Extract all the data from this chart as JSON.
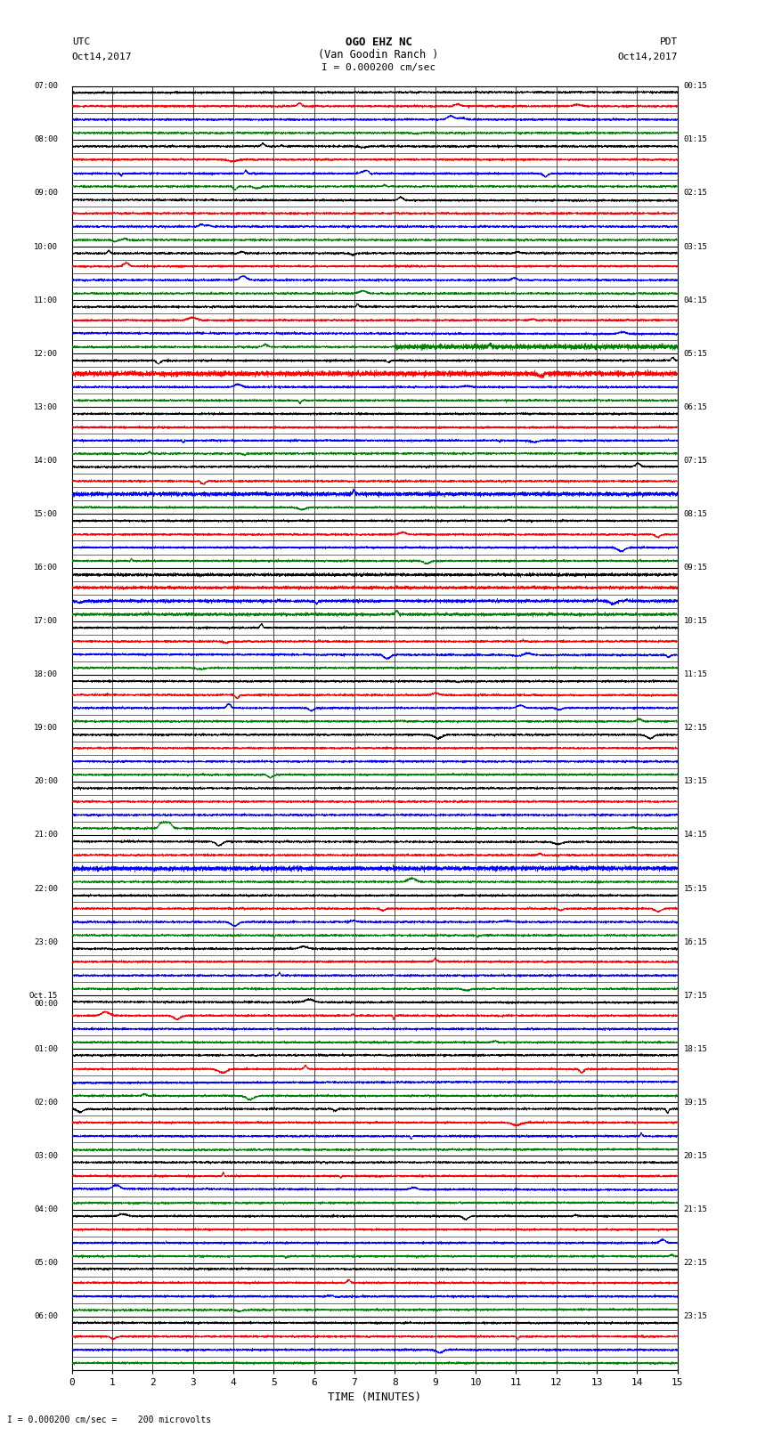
{
  "title_line1": "OGO EHZ NC",
  "title_line2": "(Van Goodin Ranch )",
  "scale_label": "I = 0.000200 cm/sec",
  "bottom_label": "I = 0.000200 cm/sec =    200 microvolts",
  "xlabel": "TIME (MINUTES)",
  "left_times": [
    "07:00",
    "08:00",
    "09:00",
    "10:00",
    "11:00",
    "12:00",
    "13:00",
    "14:00",
    "15:00",
    "16:00",
    "17:00",
    "18:00",
    "19:00",
    "20:00",
    "21:00",
    "22:00",
    "23:00",
    "Oct.15\n00:00",
    "01:00",
    "02:00",
    "03:00",
    "04:00",
    "05:00",
    "06:00"
  ],
  "right_times": [
    "00:15",
    "01:15",
    "02:15",
    "03:15",
    "04:15",
    "05:15",
    "06:15",
    "07:15",
    "08:15",
    "09:15",
    "10:15",
    "11:15",
    "12:15",
    "13:15",
    "14:15",
    "15:15",
    "16:15",
    "17:15",
    "18:15",
    "19:15",
    "20:15",
    "21:15",
    "22:15",
    "23:15"
  ],
  "num_rows": 24,
  "sub_traces": 4,
  "minutes_per_row": 15,
  "bg_color": "#ffffff",
  "trace_colors": [
    "#000000",
    "#ff0000",
    "#0000ff",
    "#008000"
  ],
  "fig_width": 8.5,
  "fig_height": 16.13,
  "dpi": 100
}
